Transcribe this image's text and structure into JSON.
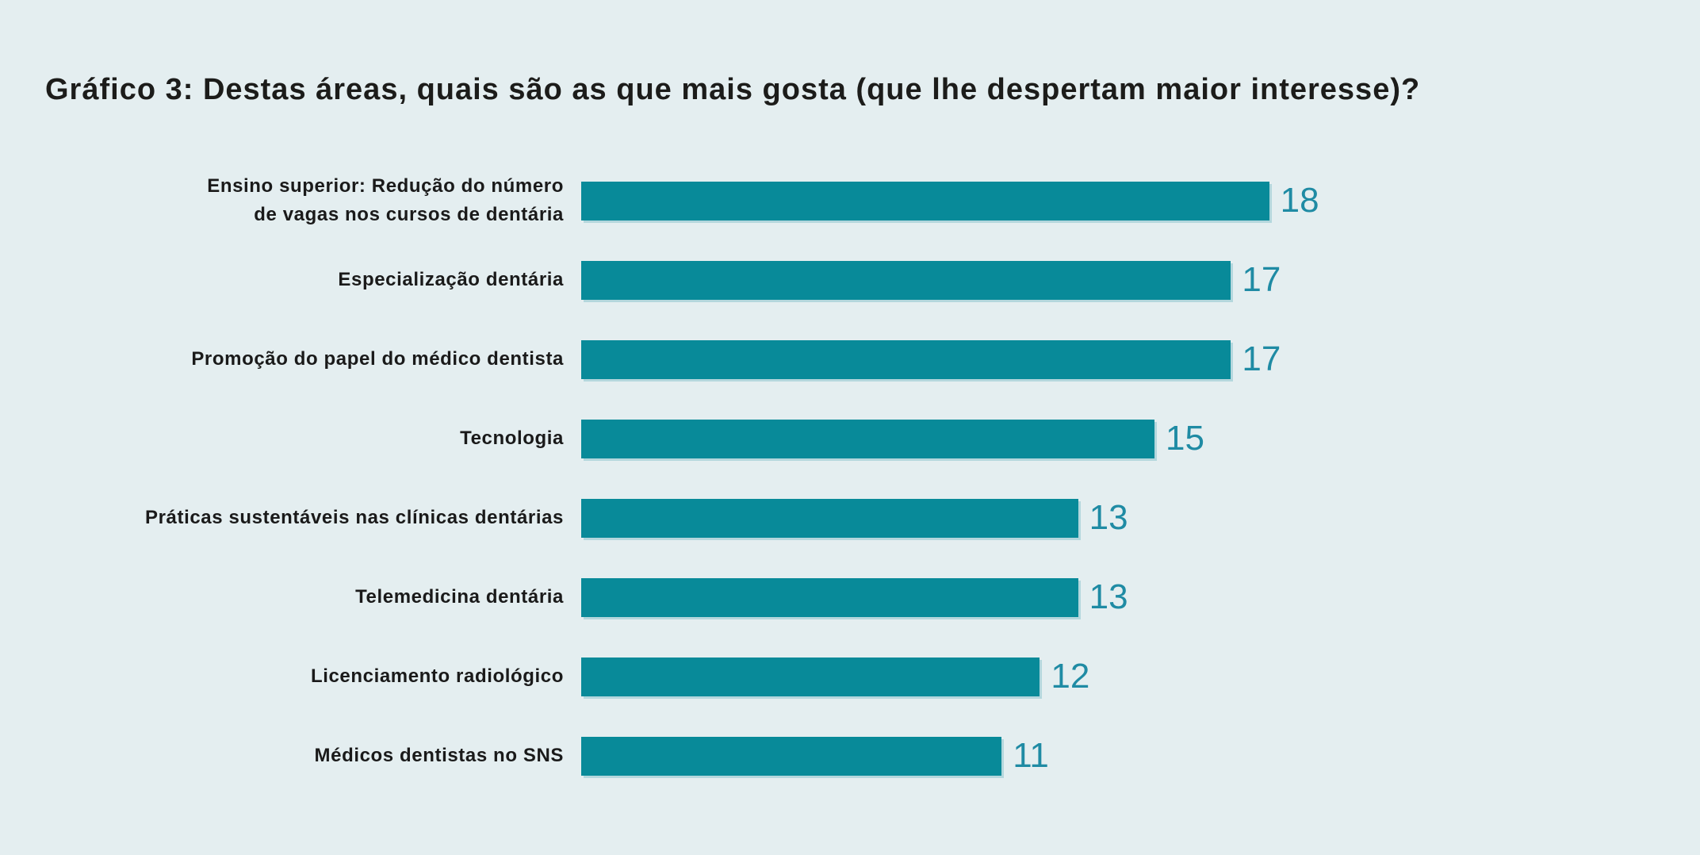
{
  "page": {
    "background_color": "#e4eef0",
    "title_color": "#1c1c1a"
  },
  "chart_data": {
    "type": "bar",
    "orientation": "horizontal",
    "title": "Gráfico 3: Destas áreas, quais são as que mais gosta (que lhe despertam maior interesse)?",
    "categories": [
      "Ensino superior: Redução do número\nde vagas nos cursos de dentária",
      "Especialização dentária",
      "Promoção do papel do médico dentista",
      "Tecnologia",
      "Práticas sustentáveis nas clínicas dentárias",
      "Telemedicina dentária",
      "Licenciamento radiológico",
      "Médicos dentistas no SNS"
    ],
    "values": [
      18,
      17,
      17,
      15,
      13,
      13,
      12,
      11
    ],
    "value_labels": [
      "18",
      "17",
      "17",
      "15",
      "13",
      "13",
      "12",
      "11"
    ],
    "xlim": [
      0,
      18
    ],
    "xlabel": "",
    "ylabel": "",
    "grid": false,
    "legend": "none",
    "axes_shown": false,
    "value_labels_position": "end-of-bar",
    "bar_color": "#088a99",
    "value_label_color": "#1f8ba4",
    "category_label_color": "#1a1a1a",
    "background_color": "#e4eef0"
  }
}
